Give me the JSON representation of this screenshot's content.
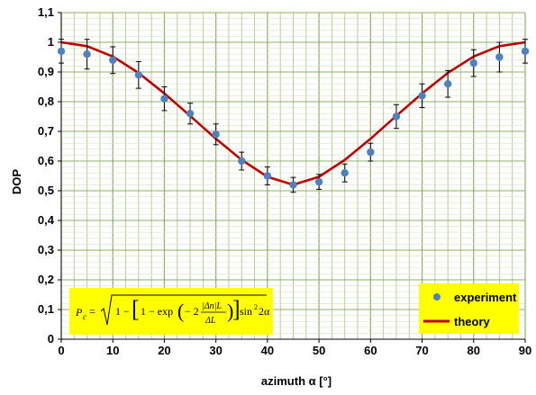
{
  "chart_data": {
    "type": "scatter",
    "xlabel": "azimuth α [°]",
    "ylabel": "DOP",
    "xlim": [
      0,
      90
    ],
    "ylim": [
      0,
      1.1
    ],
    "x_ticks": [
      "0",
      "10",
      "20",
      "30",
      "40",
      "50",
      "60",
      "70",
      "80",
      "90"
    ],
    "y_ticks": [
      "0",
      "0,1",
      "0,2",
      "0,3",
      "0,4",
      "0,5",
      "0,6",
      "0,7",
      "0,8",
      "0,9",
      "1",
      "1,1"
    ],
    "grid": true,
    "legend_position": "bottom-right",
    "series": [
      {
        "name": "experiment",
        "kind": "points-with-error-bars",
        "color": "#4f81bd",
        "points": [
          {
            "x": 0,
            "y": 0.97,
            "err": 0.04
          },
          {
            "x": 5,
            "y": 0.96,
            "err": 0.05
          },
          {
            "x": 10,
            "y": 0.94,
            "err": 0.045
          },
          {
            "x": 15,
            "y": 0.89,
            "err": 0.045
          },
          {
            "x": 20,
            "y": 0.81,
            "err": 0.04
          },
          {
            "x": 25,
            "y": 0.76,
            "err": 0.035
          },
          {
            "x": 30,
            "y": 0.69,
            "err": 0.035
          },
          {
            "x": 35,
            "y": 0.6,
            "err": 0.03
          },
          {
            "x": 40,
            "y": 0.55,
            "err": 0.03
          },
          {
            "x": 45,
            "y": 0.52,
            "err": 0.025
          },
          {
            "x": 50,
            "y": 0.53,
            "err": 0.025
          },
          {
            "x": 55,
            "y": 0.56,
            "err": 0.03
          },
          {
            "x": 60,
            "y": 0.63,
            "err": 0.03
          },
          {
            "x": 65,
            "y": 0.75,
            "err": 0.04
          },
          {
            "x": 70,
            "y": 0.82,
            "err": 0.04
          },
          {
            "x": 75,
            "y": 0.86,
            "err": 0.045
          },
          {
            "x": 80,
            "y": 0.93,
            "err": 0.045
          },
          {
            "x": 85,
            "y": 0.95,
            "err": 0.05
          },
          {
            "x": 90,
            "y": 0.97,
            "err": 0.04
          }
        ]
      },
      {
        "name": "theory",
        "kind": "line",
        "color": "#c00000",
        "x": [
          0,
          5,
          10,
          15,
          20,
          25,
          30,
          35,
          40,
          45,
          50,
          55,
          60,
          65,
          70,
          75,
          80,
          85,
          90
        ],
        "y": [
          1.0,
          0.987,
          0.952,
          0.897,
          0.828,
          0.752,
          0.675,
          0.604,
          0.547,
          0.52,
          0.547,
          0.604,
          0.675,
          0.752,
          0.828,
          0.897,
          0.952,
          0.987,
          1.0
        ]
      }
    ],
    "formula_box": {
      "color": "#ffff00",
      "text": "Pc = √(1 − [1 − exp(−2 |Δn|L / ΔL)] sin² 2α)"
    }
  }
}
